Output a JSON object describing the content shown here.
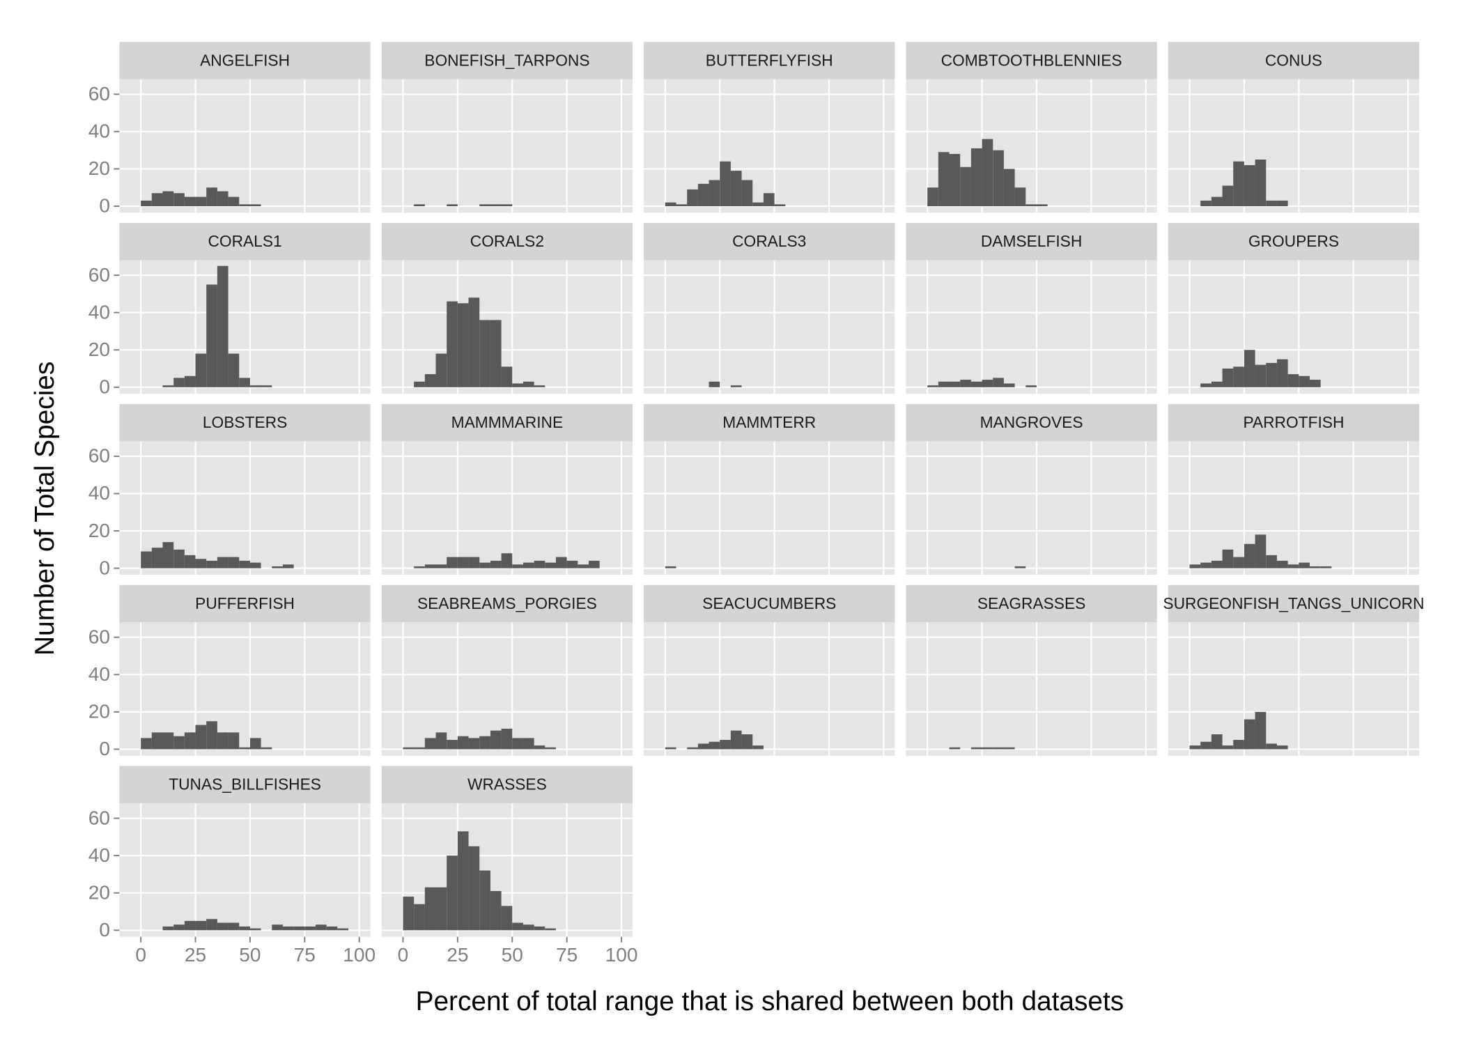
{
  "chart_data": {
    "type": "histogram",
    "x_label": "Percent of total range that is shared between both datasets",
    "y_label": "Number of Total Species",
    "color": "#595959",
    "grid": true,
    "xlim": [
      -9.8,
      105.1
    ],
    "ylim": [
      -3.5,
      68
    ],
    "xticks": [
      0,
      25,
      50,
      75,
      100
    ],
    "yticks": [
      0,
      20,
      40,
      60
    ],
    "bins": [
      0,
      5,
      10,
      15,
      20,
      25,
      30,
      35,
      40,
      45,
      50,
      55,
      60,
      65,
      70,
      75,
      80,
      85,
      90,
      95,
      100
    ],
    "facets": [
      {
        "name": "ANGELFISH",
        "values": [
          3,
          7,
          8,
          7,
          5,
          5,
          10,
          8,
          5,
          1,
          1,
          0,
          0,
          0,
          0,
          0,
          0,
          0,
          0,
          0
        ]
      },
      {
        "name": "BONEFISH_TARPONS",
        "values": [
          0,
          1,
          0,
          0,
          1,
          0,
          0,
          1,
          1,
          1,
          0,
          0,
          0,
          0,
          0,
          0,
          0,
          0,
          0,
          0
        ]
      },
      {
        "name": "BUTTERFLYFISH",
        "values": [
          2,
          1,
          9,
          12,
          14,
          24,
          19,
          14,
          2,
          7,
          1,
          0,
          0,
          0,
          0,
          0,
          0,
          0,
          0,
          0
        ]
      },
      {
        "name": "COMBTOOTHBLENNIES",
        "values": [
          10,
          29,
          28,
          21,
          31,
          36,
          30,
          20,
          10,
          1,
          1,
          0,
          0,
          0,
          0,
          0,
          0,
          0,
          0,
          0
        ]
      },
      {
        "name": "CONUS",
        "values": [
          0,
          3,
          5,
          11,
          24,
          22,
          25,
          3,
          3,
          0,
          0,
          0,
          0,
          0,
          0,
          0,
          0,
          0,
          0,
          0
        ]
      },
      {
        "name": "CORALS1",
        "values": [
          0,
          0,
          1,
          5,
          6,
          18,
          55,
          65,
          18,
          5,
          1,
          1,
          0,
          0,
          0,
          0,
          0,
          0,
          0,
          0
        ]
      },
      {
        "name": "CORALS2",
        "values": [
          0,
          3,
          7,
          18,
          46,
          45,
          48,
          36,
          36,
          11,
          2,
          3,
          1,
          0,
          0,
          0,
          0,
          0,
          0,
          0
        ]
      },
      {
        "name": "CORALS3",
        "values": [
          0,
          0,
          0,
          0,
          3,
          0,
          1,
          0,
          0,
          0,
          0,
          0,
          0,
          0,
          0,
          0,
          0,
          0,
          0,
          0
        ]
      },
      {
        "name": "DAMSELFISH",
        "values": [
          1,
          3,
          3,
          4,
          3,
          4,
          5,
          2,
          0,
          1,
          0,
          0,
          0,
          0,
          0,
          0,
          0,
          0,
          0,
          0
        ]
      },
      {
        "name": "GROUPERS",
        "values": [
          0,
          2,
          3,
          10,
          11,
          20,
          12,
          13,
          15,
          7,
          6,
          4,
          0,
          0,
          0,
          0,
          0,
          0,
          0,
          0
        ]
      },
      {
        "name": "LOBSTERS",
        "values": [
          9,
          11,
          14,
          10,
          7,
          5,
          4,
          6,
          6,
          4,
          3,
          0,
          1,
          2,
          0,
          0,
          0,
          0,
          0,
          0
        ]
      },
      {
        "name": "MAMMMARINE",
        "values": [
          0,
          1,
          2,
          2,
          6,
          6,
          6,
          3,
          4,
          8,
          2,
          3,
          4,
          3,
          6,
          4,
          2,
          4,
          0,
          0
        ]
      },
      {
        "name": "MAMMTERR",
        "values": [
          1,
          0,
          0,
          0,
          0,
          0,
          0,
          0,
          0,
          0,
          0,
          0,
          0,
          0,
          0,
          0,
          0,
          0,
          0,
          0
        ]
      },
      {
        "name": "MANGROVES",
        "values": [
          0,
          0,
          0,
          0,
          0,
          0,
          0,
          0,
          1,
          0,
          0,
          0,
          0,
          0,
          0,
          0,
          0,
          0,
          0,
          0
        ]
      },
      {
        "name": "PARROTFISH",
        "values": [
          2,
          3,
          4,
          10,
          6,
          13,
          18,
          7,
          4,
          2,
          3,
          1,
          1,
          0,
          0,
          0,
          0,
          0,
          0,
          0
        ]
      },
      {
        "name": "PUFFERFISH",
        "values": [
          6,
          9,
          9,
          7,
          9,
          13,
          15,
          9,
          9,
          1,
          6,
          1,
          0,
          0,
          0,
          0,
          0,
          0,
          0,
          0
        ]
      },
      {
        "name": "SEABREAMS_PORGIES",
        "values": [
          1,
          1,
          6,
          9,
          5,
          7,
          6,
          7,
          10,
          11,
          6,
          6,
          2,
          1,
          0,
          0,
          0,
          0,
          0,
          0
        ]
      },
      {
        "name": "SEACUCUMBERS",
        "values": [
          1,
          0,
          1,
          3,
          4,
          5,
          10,
          8,
          2,
          0,
          0,
          0,
          0,
          0,
          0,
          0,
          0,
          0,
          0,
          0
        ]
      },
      {
        "name": "SEAGRASSES",
        "values": [
          0,
          0,
          1,
          0,
          1,
          1,
          1,
          1,
          0,
          0,
          0,
          0,
          0,
          0,
          0,
          0,
          0,
          0,
          0,
          0
        ]
      },
      {
        "name": "SURGEONFISH_TANGS_UNICORN",
        "values": [
          2,
          4,
          8,
          2,
          5,
          16,
          20,
          3,
          2,
          0,
          0,
          0,
          0,
          0,
          0,
          0,
          0,
          0,
          0,
          0
        ]
      },
      {
        "name": "TUNAS_BILLFISHES",
        "values": [
          0,
          0,
          2,
          3,
          5,
          5,
          6,
          4,
          4,
          2,
          1,
          0,
          3,
          2,
          2,
          2,
          3,
          2,
          1,
          0
        ]
      },
      {
        "name": "WRASSES",
        "values": [
          18,
          14,
          23,
          23,
          40,
          53,
          45,
          32,
          21,
          13,
          4,
          3,
          2,
          1,
          0,
          0,
          0,
          0,
          0,
          0
        ]
      }
    ]
  }
}
